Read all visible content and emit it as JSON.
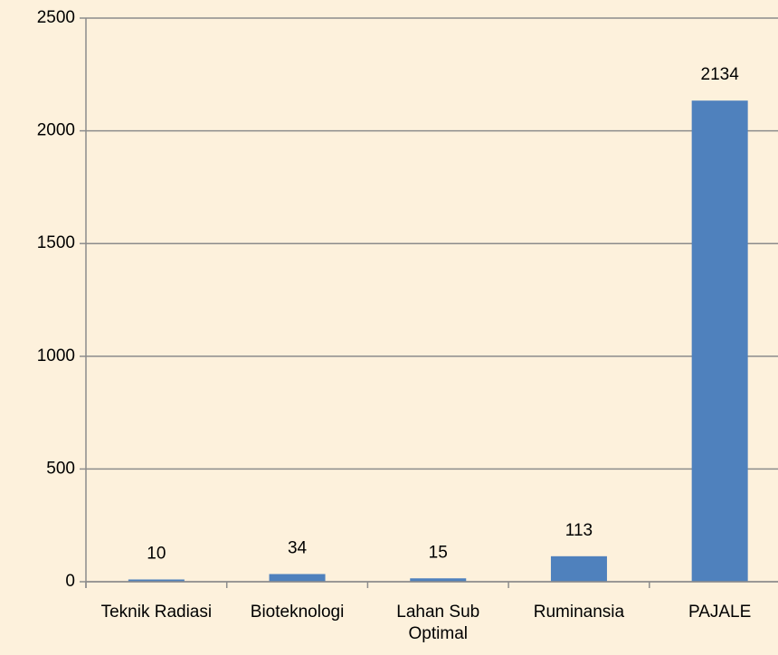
{
  "chart_data": {
    "type": "bar",
    "categories": [
      "Teknik Radiasi",
      "Bioteknologi",
      "Lahan Sub Optimal",
      "Ruminansia",
      "PAJALE"
    ],
    "values": [
      10,
      34,
      15,
      113,
      2134
    ],
    "color": "#4f81bd",
    "ylim": [
      0,
      2500
    ],
    "yticks": [
      0,
      500,
      1000,
      1500,
      2000,
      2500
    ],
    "grid": true
  }
}
